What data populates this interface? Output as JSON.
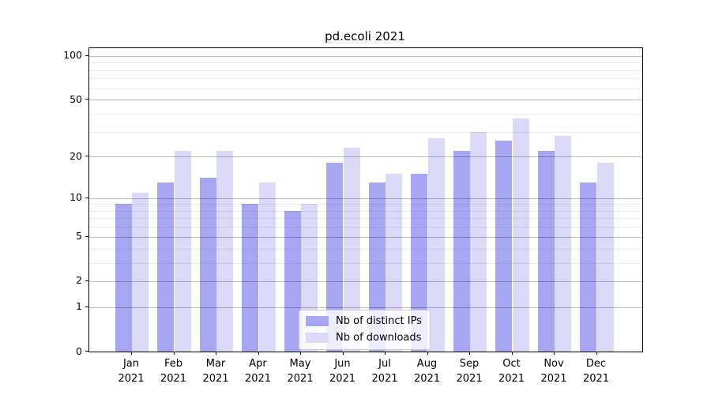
{
  "title": "pd.ecoli 2021",
  "colors": {
    "series_ips": "#a6a6f2",
    "series_downloads": "#dadaf8",
    "axis": "#000000",
    "grid_major": "rgba(0,0,0,0.26)",
    "grid_minor": "rgba(0,0,0,0.08)",
    "legend_border": "#cccccc"
  },
  "chart_data": {
    "type": "bar",
    "title": "pd.ecoli 2021",
    "categories": [
      "Jan",
      "Feb",
      "Mar",
      "Apr",
      "May",
      "Jun",
      "Jul",
      "Aug",
      "Sep",
      "Oct",
      "Nov",
      "Dec"
    ],
    "year_label": "2021",
    "series": [
      {
        "name": "Nb of distinct IPs",
        "color": "#a6a6f2",
        "values": [
          9,
          13,
          14,
          9,
          8,
          18,
          13,
          15,
          22,
          26,
          22,
          13
        ]
      },
      {
        "name": "Nb of downloads",
        "color": "#dadaf8",
        "values": [
          11,
          22,
          22,
          13,
          9,
          23,
          15,
          27,
          30,
          37,
          28,
          18
        ]
      }
    ],
    "xlabel": "",
    "ylabel": "",
    "yscale": "log1p",
    "ylim": [
      0,
      113
    ],
    "yticks": [
      0,
      1,
      2,
      5,
      10,
      20,
      50,
      100
    ],
    "yticks_minor": [
      3,
      4,
      6,
      7,
      8,
      9,
      30,
      40,
      60,
      70,
      80,
      90
    ],
    "grid": "on",
    "legend_position": "lower center"
  }
}
